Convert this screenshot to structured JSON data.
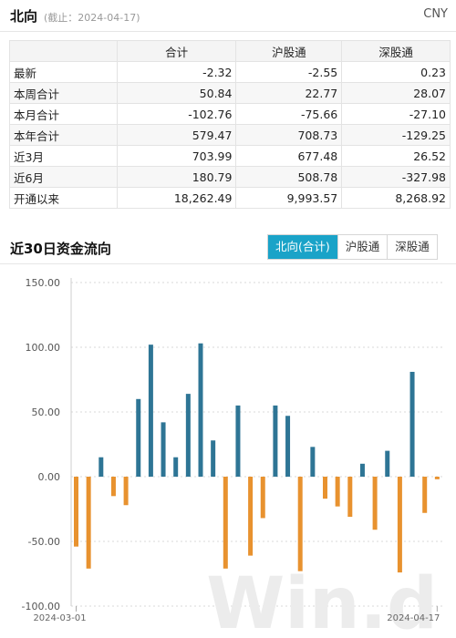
{
  "header": {
    "title": "北向",
    "as_of": "(截止：2024-04-17)",
    "currency": "CNY"
  },
  "summary_table": {
    "columns": [
      "",
      "合计",
      "沪股通",
      "深股通"
    ],
    "rows": [
      {
        "label": "最新",
        "values": [
          "-2.32",
          "-2.55",
          "0.23"
        ]
      },
      {
        "label": "本周合计",
        "values": [
          "50.84",
          "22.77",
          "28.07"
        ]
      },
      {
        "label": "本月合计",
        "values": [
          "-102.76",
          "-75.66",
          "-27.10"
        ]
      },
      {
        "label": "本年合计",
        "values": [
          "579.47",
          "708.73",
          "-129.25"
        ]
      },
      {
        "label": "近3月",
        "values": [
          "703.99",
          "677.48",
          "26.52"
        ]
      },
      {
        "label": "近6月",
        "values": [
          "180.79",
          "508.78",
          "-327.98"
        ]
      },
      {
        "label": "开通以来",
        "values": [
          "18,262.49",
          "9,993.57",
          "8,268.92"
        ]
      }
    ]
  },
  "chart_section": {
    "title": "近30日资金流向",
    "tabs": [
      {
        "label": "北向(合计)",
        "active": true
      },
      {
        "label": "沪股通",
        "active": false
      },
      {
        "label": "深股通",
        "active": false
      }
    ]
  },
  "watermark": "Win.d",
  "colors": {
    "positive": "#2e7595",
    "negative": "#e8922f",
    "accent": "#1aa3c8"
  },
  "chart_data": {
    "type": "bar",
    "title": "",
    "ylim": [
      -100,
      150
    ],
    "yticks": [
      "150.00",
      "100.00",
      "50.00",
      "0.00",
      "-50.00",
      "-100.00"
    ],
    "xtick_labels": [
      "2024-03-01",
      "2024-04-17"
    ],
    "values": [
      -54,
      -71,
      15,
      -15,
      -22,
      60,
      102,
      42,
      15,
      64,
      103,
      28,
      -71,
      55,
      -61,
      -32,
      55,
      47,
      -73,
      23,
      -17,
      -23,
      -31,
      10,
      -41,
      20,
      -74,
      81,
      -28,
      -2
    ],
    "grid": true,
    "legend": "none"
  }
}
